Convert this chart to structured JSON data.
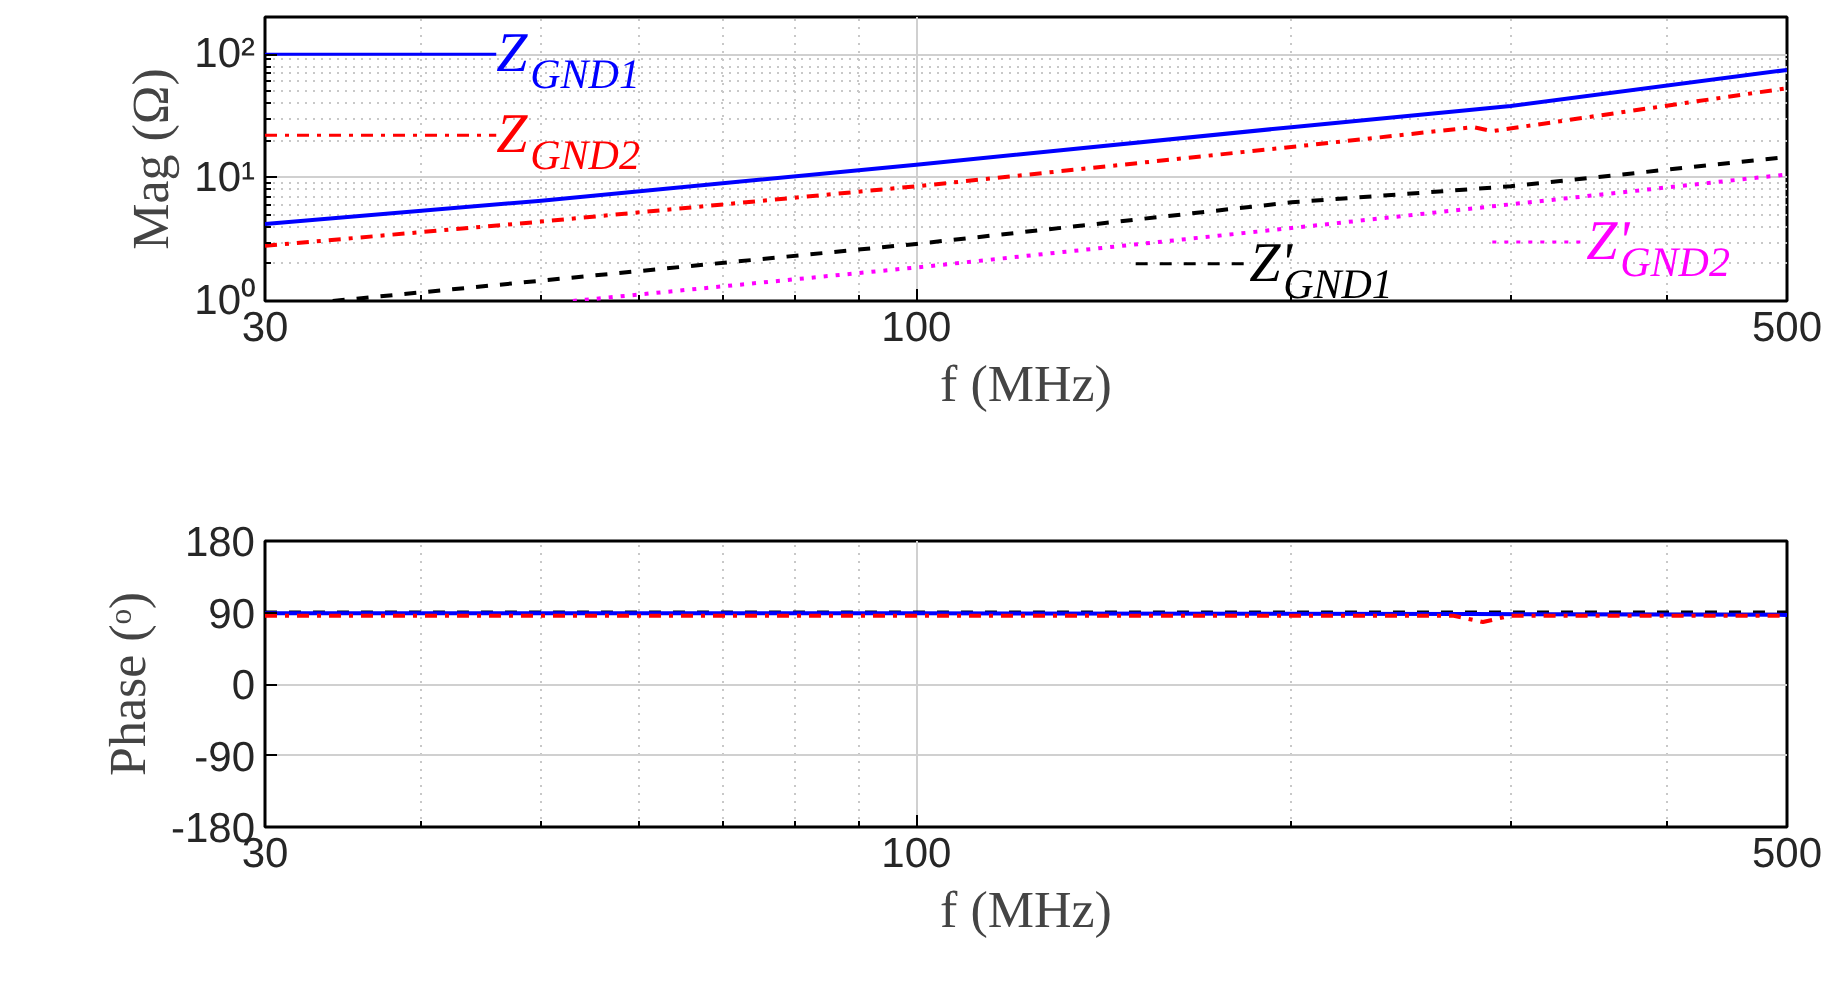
{
  "chart_data": [
    {
      "type": "line",
      "ylabel": "Mag (Ω)",
      "xlabel": "f (MHz)",
      "log": "xy",
      "xlim": [
        30,
        500
      ],
      "ylim": [
        1,
        200
      ],
      "xticks": [
        30,
        100,
        500
      ],
      "yticks": [
        {
          "value": 1,
          "label": "10⁰"
        },
        {
          "value": 10,
          "label": "10¹"
        },
        {
          "value": 100,
          "label": "10²"
        }
      ],
      "grid": true,
      "legend": "bottom left",
      "series": [
        {
          "name": "Z$_{GND1}$",
          "color": "#0000ff",
          "line_style": "solid",
          "x": [
            30,
            50,
            100,
            200,
            300,
            500
          ],
          "values": [
            4.2,
            6.5,
            12.7,
            25.6,
            38,
            74.5
          ]
        },
        {
          "name": "Z$_{GND2}$",
          "color": "#ff0000",
          "line_style": "dashdot",
          "x": [
            30,
            50,
            100,
            200,
            280,
            290,
            500
          ],
          "values": [
            2.8,
            4.4,
            8.5,
            17.7,
            25.6,
            23.8,
            53
          ]
        },
        {
          "name": "Z'$_{GND1}$",
          "color": "#000000",
          "line_style": "dashed",
          "x": [
            34,
            100,
            200,
            300,
            500
          ],
          "values": [
            1.0,
            2.9,
            6.3,
            8.5,
            14.7
          ]
        },
        {
          "name": "Z'$_{GND2}$",
          "color": "#ff00ff",
          "line_style": "dotted",
          "x": [
            53,
            100,
            200,
            500
          ],
          "values": [
            1.0,
            1.87,
            3.9,
            10.6
          ]
        }
      ]
    },
    {
      "type": "line",
      "ylabel": "Phase (ᵒ)",
      "xlabel": "f (MHz)",
      "log": "x",
      "xlim": [
        30,
        500
      ],
      "ylim": [
        -180,
        180
      ],
      "xticks": [
        30,
        100,
        500
      ],
      "yticks": [
        -180,
        -90,
        0,
        90,
        180
      ],
      "grid": true,
      "series": [
        {
          "color": "#000000",
          "line_style": "dashed",
          "x": [
            30,
            100,
            300,
            500
          ],
          "values": [
            90,
            90,
            90,
            90
          ]
        },
        {
          "color": "#0000ff",
          "line_style": "solid",
          "x": [
            30,
            100,
            280,
            500
          ],
          "values": [
            89,
            89,
            88,
            87
          ]
        },
        {
          "color": "#ff0000",
          "line_style": "dashdot",
          "x": [
            30,
            100,
            270,
            285,
            300,
            500
          ],
          "values": [
            86,
            86,
            86,
            78,
            86,
            86
          ]
        }
      ]
    }
  ]
}
